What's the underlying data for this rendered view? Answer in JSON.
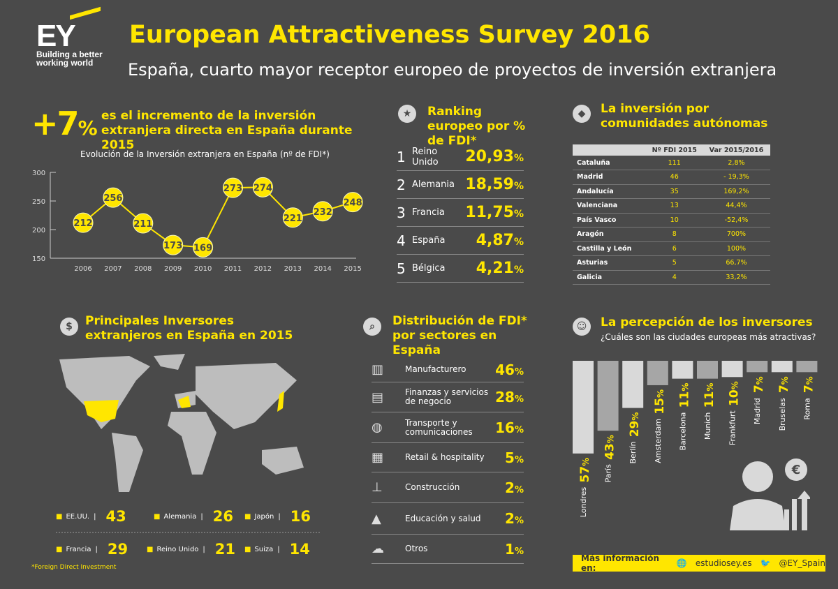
{
  "header": {
    "logo_text": "EY",
    "logo_tagline": "Building a better working world",
    "title": "European Attractiveness Survey 2016",
    "subtitle": "España, cuarto mayor receptor europeo de proyectos de inversión extranjera"
  },
  "increase": {
    "value": "+7",
    "unit": "%",
    "text": "es el incremento de la inversión extranjera directa en España durante 2015"
  },
  "chart_data": [
    {
      "type": "line",
      "title": "Evolución de la Inversión extranjera en España (nº de FDI*)",
      "x": [
        "2006",
        "2007",
        "2008",
        "2009",
        "2010",
        "2011",
        "2012",
        "2013",
        "2014",
        "2015"
      ],
      "values": [
        212,
        256,
        211,
        173,
        169,
        273,
        274,
        221,
        232,
        248
      ],
      "ylim": [
        150,
        300
      ],
      "yticks": [
        150,
        200,
        250,
        300
      ],
      "color": "#ffe600",
      "data_labels": true,
      "grid": false
    },
    {
      "type": "bar",
      "title": "La percepción de los inversores",
      "subtitle": "¿Cuáles son las ciudades europeas más atractivas?",
      "categories": [
        "Londres",
        "París",
        "Berlín",
        "Amsterdam",
        "Barcelona",
        "Munich",
        "Frankfurt",
        "Madrid",
        "Bruselas",
        "Roma"
      ],
      "values": [
        57,
        43,
        29,
        15,
        11,
        11,
        10,
        7,
        7,
        7
      ],
      "unit": "%",
      "orientation": "downward"
    }
  ],
  "ranking": {
    "title": "Ranking europeo por % de FDI*",
    "icon": "medal-icon",
    "rows": [
      {
        "pos": "1",
        "country": "Reino Unido",
        "value": "20,93",
        "unit": "%"
      },
      {
        "pos": "2",
        "country": "Alemania",
        "value": "18,59",
        "unit": "%"
      },
      {
        "pos": "3",
        "country": "Francia",
        "value": "11,75",
        "unit": "%"
      },
      {
        "pos": "4",
        "country": "España",
        "value": "4,87",
        "unit": "%"
      },
      {
        "pos": "5",
        "country": "Bélgica",
        "value": "4,21",
        "unit": "%"
      }
    ]
  },
  "regions": {
    "title": "La inversión por comunidades autónomas",
    "icon": "spain-map-icon",
    "headers": [
      "",
      "Nº FDI 2015",
      "Var 2015/2016"
    ],
    "rows": [
      [
        "Cataluña",
        "111",
        "2,8%"
      ],
      [
        "Madrid",
        "46",
        "- 19,3%"
      ],
      [
        "Andalucía",
        "35",
        "169,2%"
      ],
      [
        "Valenciana",
        "13",
        "44,4%"
      ],
      [
        "País Vasco",
        "10",
        "-52,4%"
      ],
      [
        "Aragón",
        "8",
        "700%"
      ],
      [
        "Castilla y León",
        "6",
        "100%"
      ],
      [
        "Asturias",
        "5",
        "66,7%"
      ],
      [
        "Galicia",
        "4",
        "33,2%"
      ]
    ]
  },
  "investors": {
    "title": "Principales Inversores extranjeros en España en 2015",
    "icon": "money-icon",
    "items": [
      {
        "country": "EE.UU.",
        "value": "43"
      },
      {
        "country": "Alemania",
        "value": "26"
      },
      {
        "country": "Japón",
        "value": "16"
      },
      {
        "country": "Francia",
        "value": "29"
      },
      {
        "country": "Reino Unido",
        "value": "21"
      },
      {
        "country": "Suiza",
        "value": "14"
      }
    ]
  },
  "sectors": {
    "title": "Distribución de FDI* por sectores en España",
    "icon": "chart-magnifier-icon",
    "rows": [
      {
        "label": "Manufacturero",
        "value": "46",
        "unit": "%",
        "icon": "factory-icon"
      },
      {
        "label": "Finanzas y servicios de negocio",
        "value": "28",
        "unit": "%",
        "icon": "finance-icon"
      },
      {
        "label": "Transporte y comunicaciones",
        "value": "16",
        "unit": "%",
        "icon": "globe-icon"
      },
      {
        "label": "Retail & hospitality",
        "value": "5",
        "unit": "%",
        "icon": "building-icon"
      },
      {
        "label": "Construcción",
        "value": "2",
        "unit": "%",
        "icon": "crane-icon"
      },
      {
        "label": "Educación y salud",
        "value": "2",
        "unit": "%",
        "icon": "graduation-icon"
      },
      {
        "label": "Otros",
        "value": "1",
        "unit": "%",
        "icon": "cloud-icon"
      }
    ]
  },
  "perception": {
    "icon": "investor-icon"
  },
  "footer": {
    "label": "Más información en:",
    "web": "estudiosey.es",
    "twitter": "@EY_Spain"
  },
  "footnote": "*Foreign Direct Investment",
  "colors": {
    "background": "#4a4a4a",
    "accent": "#ffe600",
    "bar_light": "#d9d9d9",
    "bar_dark": "#a6a6a6"
  }
}
